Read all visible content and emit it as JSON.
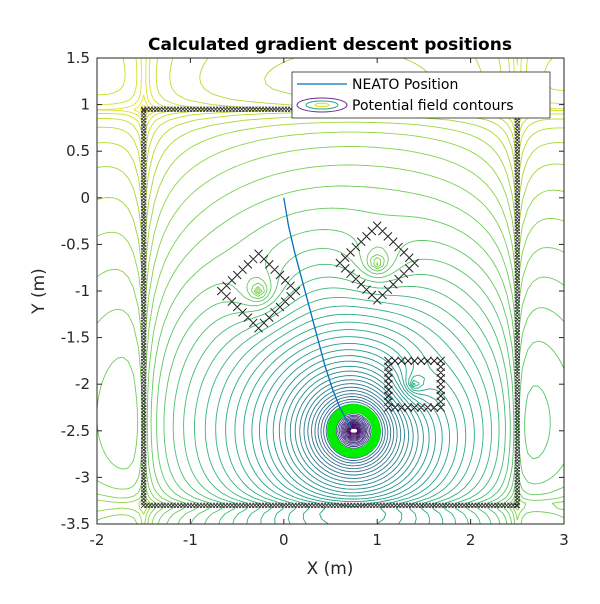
{
  "chart_data": {
    "type": "line",
    "title": "Calculated gradient descent positions",
    "xlabel": "X (m)",
    "ylabel": "Y (m)",
    "xlim": [
      -2,
      3
    ],
    "ylim": [
      -3.5,
      1.5
    ],
    "xticks": [
      -2,
      -1,
      0,
      1,
      2,
      3
    ],
    "yticks": [
      1.5,
      1,
      0.5,
      0,
      -0.5,
      -1,
      -1.5,
      -2,
      -2.5,
      -3,
      -3.5
    ],
    "xtick_labels": [
      "-2",
      "-1",
      "0",
      "1",
      "2",
      "3"
    ],
    "ytick_labels": [
      "1.5",
      "1",
      "0.5",
      "0",
      "-0.5",
      "-1",
      "-1.5",
      "-2",
      "-2.5",
      "-3",
      "-3.5"
    ],
    "grid": false,
    "legend": {
      "placement": "top-right",
      "entries": [
        "NEATO Position",
        "Potential field contours"
      ]
    },
    "series": [
      {
        "name": "NEATO Position",
        "color": "#0072BD",
        "x": [
          0,
          0.05,
          0.12,
          0.2,
          0.28,
          0.36,
          0.44,
          0.52,
          0.6,
          0.68,
          0.72
        ],
        "y": [
          0,
          -0.3,
          -0.6,
          -0.9,
          -1.2,
          -1.5,
          -1.8,
          -2.05,
          -2.25,
          -2.4,
          -2.47
        ]
      }
    ],
    "walls": {
      "x_min": -1.5,
      "x_max": 2.5,
      "y_min": -3.3,
      "y_max": 0.95
    },
    "obstacles": [
      {
        "shape": "diamond",
        "center": [
          -0.27,
          -1.0
        ],
        "half_diag": 0.4
      },
      {
        "shape": "diamond",
        "center": [
          1.0,
          -0.7
        ],
        "half_diag": 0.4
      },
      {
        "shape": "square",
        "x": [
          1.12,
          1.68
        ],
        "y": [
          -2.25,
          -1.75
        ]
      }
    ],
    "goal": {
      "center": [
        0.75,
        -2.5
      ],
      "radius": 0.24,
      "color": "#00ee00"
    },
    "colors": {
      "contour_low": "#440154",
      "contour_high": "#fde725",
      "marker": "#000000"
    }
  }
}
